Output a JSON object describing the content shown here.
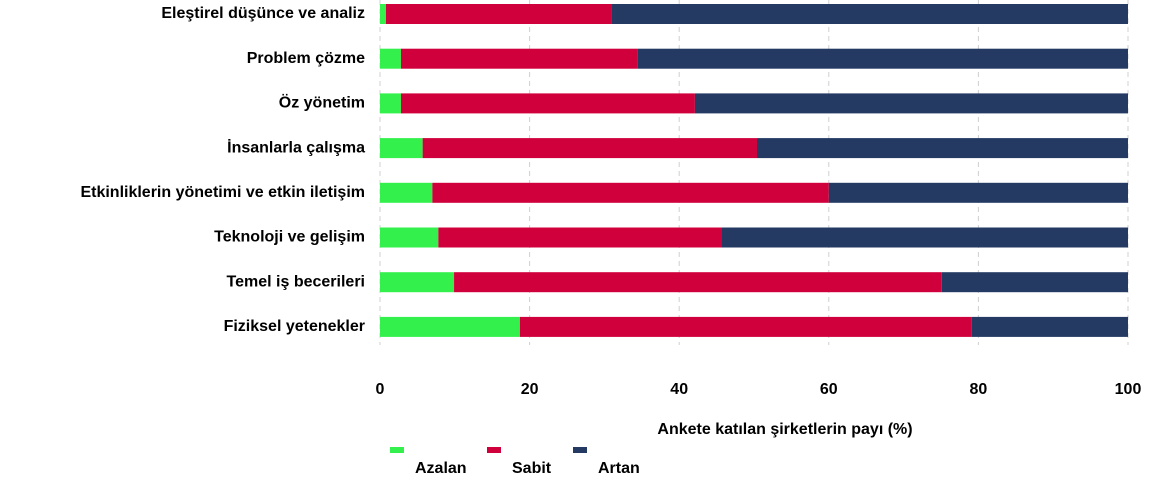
{
  "chart_data": {
    "type": "stacked-bar-horizontal",
    "xlabel": "Ankete katılan şirketlerin payı (%)",
    "categories": [
      "Eleştirel düşünce ve analiz",
      "Problem çözme",
      "Öz yönetim",
      "İnsanlarla çalışma",
      "Etkinliklerin yönetimi ve etkin iletişim",
      "Teknoloji ve gelişim",
      "Temel iş becerileri",
      "Fiziksel yetenekler"
    ],
    "series": [
      {
        "name": "Azalan",
        "color": "#33f04d",
        "values": [
          0.8,
          2.8,
          2.8,
          5.7,
          7.0,
          7.8,
          9.9,
          18.7
        ]
      },
      {
        "name": "Sabit",
        "color": "#d0003c",
        "values": [
          30.1,
          31.6,
          39.3,
          44.7,
          53.0,
          37.8,
          65.2,
          60.4
        ]
      },
      {
        "name": "Artan",
        "color": "#243a63",
        "values": [
          69.1,
          65.6,
          57.9,
          49.6,
          40.0,
          54.4,
          24.9,
          20.9
        ]
      }
    ],
    "xlim": [
      0,
      100
    ],
    "xticks": [
      0,
      20,
      40,
      60,
      80,
      100
    ],
    "grid": true
  }
}
